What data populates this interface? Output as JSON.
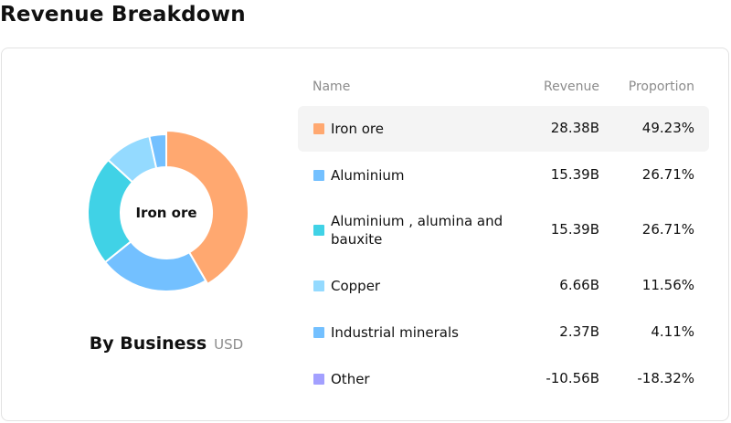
{
  "page": {
    "title": "Revenue Breakdown"
  },
  "donut": {
    "center_label": "Iron ore",
    "caption_title": "By Business",
    "caption_unit": "USD"
  },
  "table": {
    "headers": {
      "name": "Name",
      "revenue": "Revenue",
      "proportion": "Proportion"
    },
    "rows": [
      {
        "name": "Iron ore",
        "revenue": "28.38B",
        "proportion": "49.23%",
        "color": "#ffa870",
        "active": true
      },
      {
        "name": "Aluminium",
        "revenue": "15.39B",
        "proportion": "26.71%",
        "color": "#73c0ff",
        "active": false
      },
      {
        "name": "Aluminium , alumina and bauxite",
        "revenue": "15.39B",
        "proportion": "26.71%",
        "color": "#40d2e6",
        "active": false
      },
      {
        "name": "Copper",
        "revenue": "6.66B",
        "proportion": "11.56%",
        "color": "#94daff",
        "active": false
      },
      {
        "name": "Industrial minerals",
        "revenue": "2.37B",
        "proportion": "4.11%",
        "color": "#73c0ff",
        "active": false
      },
      {
        "name": "Other",
        "revenue": "-10.56B",
        "proportion": "-18.32%",
        "color": "#a3a0ff",
        "active": false
      }
    ]
  },
  "chart_data": {
    "type": "pie",
    "variant": "donut",
    "categories": [
      "Iron ore",
      "Aluminium",
      "Aluminium , alumina and bauxite",
      "Copper",
      "Industrial minerals",
      "Other"
    ],
    "values": [
      28.38,
      15.39,
      15.39,
      6.66,
      2.37,
      -10.56
    ],
    "proportions": [
      49.23,
      26.71,
      26.71,
      11.56,
      4.11,
      -18.32
    ],
    "unit": "USD",
    "colors": [
      "#ffa870",
      "#73c0ff",
      "#40d2e6",
      "#94daff",
      "#73c0ff",
      "#a3a0ff"
    ],
    "highlighted": "Iron ore"
  }
}
